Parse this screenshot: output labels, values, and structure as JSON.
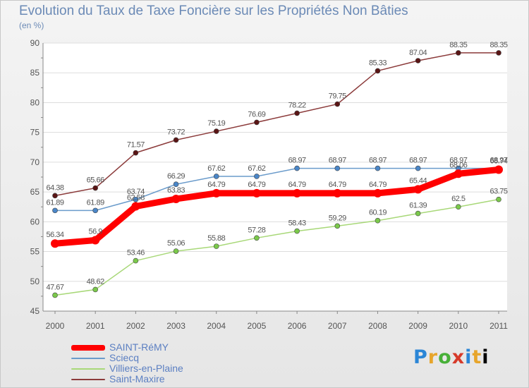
{
  "title": "Evolution du Taux de Taxe Foncière sur les Propriétés Non Bâties",
  "subtitle": "(en %)",
  "logo_text": "Proxiti",
  "chart_data": {
    "type": "line",
    "title": "Evolution du Taux de Taxe Foncière sur les Propriétés Non Bâties",
    "ylabel": "(en %)",
    "xlabel": "",
    "x": [
      "2000",
      "2001",
      "2002",
      "2003",
      "2004",
      "2005",
      "2006",
      "2007",
      "2008",
      "2009",
      "2010",
      "2011"
    ],
    "ylim": [
      45,
      90
    ],
    "yticks": [
      "45",
      "50",
      "55",
      "60",
      "65",
      "70",
      "75",
      "80",
      "85",
      "90"
    ],
    "grid": "horizontal",
    "legend_position": "bottom-left",
    "series": [
      {
        "name": "Saint-Maxire",
        "color": "#8b3a3a",
        "marker_color": "#5a1515",
        "values": [
          64.38,
          65.66,
          71.57,
          73.72,
          75.19,
          76.69,
          78.22,
          79.75,
          85.33,
          87.04,
          88.35,
          88.35
        ],
        "labels": [
          "64.38",
          "65.66",
          "71.57",
          "73.72",
          "75.19",
          "76.69",
          "78.22",
          "79.75",
          "85.33",
          "87.04",
          "88.35",
          "88.35"
        ]
      },
      {
        "name": "Sciecq",
        "color": "#6a9bcb",
        "marker_color": "#4a86c8",
        "values": [
          61.89,
          61.89,
          63.74,
          66.29,
          67.62,
          67.62,
          68.97,
          68.97,
          68.97,
          68.97,
          68.97,
          68.97
        ],
        "labels": [
          "61.89",
          "61.89",
          "63.74",
          "66.29",
          "67.62",
          "67.62",
          "68.97",
          "68.97",
          "68.97",
          "68.97",
          "68.97",
          "68.97"
        ]
      },
      {
        "name": "Villiers-en-Plaine",
        "color": "#a8d878",
        "marker_color": "#7ac94a",
        "values": [
          47.67,
          48.62,
          53.46,
          55.06,
          55.88,
          57.28,
          58.43,
          59.29,
          60.19,
          61.39,
          62.5,
          63.75
        ],
        "labels": [
          "47.67",
          "48.62",
          "53.46",
          "55.06",
          "55.88",
          "57.28",
          "58.43",
          "59.29",
          "60.19",
          "61.39",
          "62.5",
          "63.75"
        ]
      },
      {
        "name": "SAINT-RéMY",
        "color": "#ff0000",
        "marker_color": "#ff0000",
        "values": [
          56.34,
          56.9,
          62.58,
          63.83,
          64.79,
          64.79,
          64.79,
          64.79,
          64.79,
          65.44,
          68.06,
          68.74
        ],
        "labels": [
          "56.34",
          "56.9",
          "62.58",
          "63.83",
          "64.79",
          "64.79",
          "64.79",
          "64.79",
          "64.79",
          "65.44",
          "68.06",
          "68.74"
        ]
      }
    ]
  }
}
